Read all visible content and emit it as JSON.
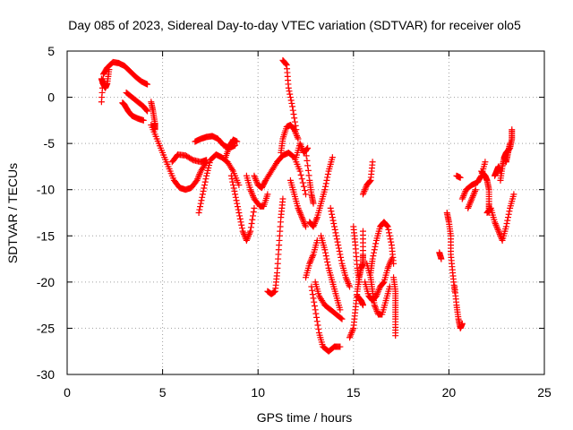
{
  "chart_data": {
    "type": "scatter",
    "title": "Day 085 of 2023, Sidereal Day-to-day VTEC variation (SDTVAR) for receiver olo5",
    "xlabel": "GPS time / hours",
    "ylabel": "SDTVAR / TECUs",
    "xlim": [
      0,
      25
    ],
    "ylim": [
      -30,
      5
    ],
    "xticks": [
      0,
      5,
      10,
      15,
      20,
      25
    ],
    "yticks": [
      5,
      0,
      -5,
      -10,
      -15,
      -20,
      -25,
      -30
    ],
    "grid": true,
    "marker": "+",
    "series": [
      {
        "name": "SDTVAR",
        "color": "#ff0000",
        "segments": [
          [
            [
              1.8,
              -0.5
            ],
            [
              1.9,
              2.5
            ],
            [
              2.1,
              3.2
            ],
            [
              2.4,
              3.8
            ],
            [
              2.7,
              3.7
            ],
            [
              3.0,
              3.4
            ],
            [
              3.3,
              2.8
            ],
            [
              3.6,
              2.2
            ],
            [
              3.9,
              1.7
            ],
            [
              4.2,
              1.4
            ]
          ],
          [
            [
              1.8,
              2.0
            ],
            [
              1.9,
              1.4
            ],
            [
              2.0,
              1.0
            ],
            [
              2.1,
              1.5
            ],
            [
              2.2,
              3.0
            ]
          ],
          [
            [
              2.9,
              -0.6
            ],
            [
              3.0,
              -0.8
            ],
            [
              3.2,
              -1.5
            ],
            [
              3.4,
              -2.0
            ],
            [
              3.7,
              -2.3
            ],
            [
              4.0,
              -2.5
            ]
          ],
          [
            [
              3.1,
              0.5
            ],
            [
              3.4,
              0.0
            ],
            [
              3.7,
              -0.5
            ],
            [
              4.0,
              -1.0
            ],
            [
              4.2,
              -1.5
            ]
          ],
          [
            [
              4.4,
              -0.5
            ],
            [
              4.5,
              -1.5
            ],
            [
              4.6,
              -2.8
            ],
            [
              4.6,
              -3.5
            ]
          ],
          [
            [
              4.4,
              -3.0
            ],
            [
              4.7,
              -4.5
            ],
            [
              5.0,
              -6.0
            ],
            [
              5.3,
              -7.5
            ],
            [
              5.6,
              -9.0
            ],
            [
              5.9,
              -9.8
            ],
            [
              6.2,
              -10.0
            ],
            [
              6.5,
              -9.8
            ],
            [
              6.8,
              -9.0
            ],
            [
              7.0,
              -8.0
            ],
            [
              7.3,
              -7.0
            ]
          ],
          [
            [
              5.5,
              -7.0
            ],
            [
              5.8,
              -6.2
            ],
            [
              6.2,
              -6.3
            ],
            [
              6.6,
              -6.8
            ],
            [
              7.0,
              -7.0
            ],
            [
              7.3,
              -6.8
            ]
          ],
          [
            [
              6.9,
              -12.5
            ],
            [
              7.1,
              -10.5
            ],
            [
              7.3,
              -8.5
            ],
            [
              7.5,
              -6.8
            ],
            [
              7.8,
              -6.2
            ],
            [
              8.1,
              -6.5
            ],
            [
              8.4,
              -7.0
            ],
            [
              8.7,
              -8.0
            ],
            [
              9.0,
              -9.5
            ]
          ],
          [
            [
              6.7,
              -4.8
            ],
            [
              7.0,
              -4.5
            ],
            [
              7.3,
              -4.3
            ],
            [
              7.6,
              -4.2
            ],
            [
              7.9,
              -4.5
            ],
            [
              8.2,
              -5.2
            ],
            [
              8.5,
              -5.5
            ],
            [
              8.8,
              -5.2
            ]
          ],
          [
            [
              8.3,
              -6.5
            ],
            [
              8.5,
              -5.3
            ],
            [
              8.7,
              -4.6
            ],
            [
              8.9,
              -4.8
            ]
          ],
          [
            [
              8.6,
              -8.5
            ],
            [
              8.8,
              -10.5
            ],
            [
              9.0,
              -12.5
            ],
            [
              9.2,
              -14.5
            ],
            [
              9.4,
              -15.5
            ],
            [
              9.6,
              -14.5
            ],
            [
              9.8,
              -12.0
            ]
          ],
          [
            [
              9.4,
              -8.5
            ],
            [
              9.6,
              -10.0
            ],
            [
              9.8,
              -11.0
            ],
            [
              10.1,
              -11.8
            ],
            [
              10.3,
              -11.8
            ],
            [
              10.5,
              -10.5
            ]
          ],
          [
            [
              9.8,
              -8.5
            ],
            [
              10.0,
              -9.5
            ],
            [
              10.2,
              -9.8
            ],
            [
              10.4,
              -9.0
            ],
            [
              10.7,
              -8.0
            ],
            [
              11.0,
              -7.0
            ],
            [
              11.3,
              -6.3
            ],
            [
              11.6,
              -6.0
            ],
            [
              11.9,
              -6.5
            ],
            [
              12.2,
              -8.0
            ],
            [
              12.5,
              -10.5
            ]
          ],
          [
            [
              10.5,
              -21.0
            ],
            [
              10.7,
              -21.3
            ],
            [
              10.9,
              -21.0
            ],
            [
              11.0,
              -19.0
            ],
            [
              11.1,
              -16.0
            ],
            [
              11.2,
              -13.0
            ],
            [
              11.3,
              -11.0
            ]
          ],
          [
            [
              11.2,
              -6.0
            ],
            [
              11.3,
              -4.5
            ],
            [
              11.5,
              -3.2
            ],
            [
              11.7,
              -3.0
            ],
            [
              11.9,
              -3.5
            ],
            [
              12.1,
              -4.5
            ]
          ],
          [
            [
              11.3,
              4.0
            ],
            [
              11.5,
              3.5
            ],
            [
              11.6,
              1.0
            ],
            [
              11.8,
              -1.0
            ],
            [
              12.0,
              -3.5
            ]
          ],
          [
            [
              11.7,
              -9.0
            ],
            [
              11.9,
              -10.5
            ],
            [
              12.1,
              -12.0
            ],
            [
              12.3,
              -13.0
            ],
            [
              12.5,
              -14.0
            ]
          ],
          [
            [
              12.0,
              -6.5
            ],
            [
              12.2,
              -5.0
            ],
            [
              12.4,
              -6.0
            ],
            [
              12.6,
              -5.5
            ]
          ],
          [
            [
              12.5,
              -19.5
            ],
            [
              12.7,
              -18.0
            ],
            [
              12.9,
              -17.0
            ],
            [
              13.1,
              -15.5
            ]
          ],
          [
            [
              12.5,
              -5.8
            ],
            [
              12.7,
              -9.0
            ],
            [
              12.8,
              -10.5
            ],
            [
              12.9,
              -11.5
            ]
          ],
          [
            [
              12.7,
              -13.5
            ],
            [
              12.9,
              -14.0
            ],
            [
              13.1,
              -13.0
            ],
            [
              13.3,
              -11.5
            ],
            [
              13.5,
              -10.0
            ],
            [
              13.7,
              -8.0
            ],
            [
              13.9,
              -6.5
            ]
          ],
          [
            [
              12.8,
              -20.5
            ],
            [
              13.0,
              -23.0
            ],
            [
              13.2,
              -25.5
            ],
            [
              13.4,
              -27.0
            ],
            [
              13.7,
              -27.5
            ],
            [
              14.0,
              -27.0
            ],
            [
              14.3,
              -27.0
            ]
          ],
          [
            [
              13.0,
              -20.0
            ],
            [
              13.2,
              -21.5
            ],
            [
              13.5,
              -22.5
            ],
            [
              13.8,
              -23.0
            ],
            [
              14.1,
              -23.5
            ],
            [
              14.4,
              -24.0
            ]
          ],
          [
            [
              13.3,
              -15.0
            ],
            [
              13.5,
              -16.5
            ],
            [
              13.7,
              -18.5
            ],
            [
              13.9,
              -20.0
            ],
            [
              14.1,
              -21.5
            ],
            [
              14.3,
              -23.0
            ]
          ],
          [
            [
              13.8,
              -12.0
            ],
            [
              14.0,
              -14.0
            ],
            [
              14.2,
              -16.0
            ],
            [
              14.4,
              -18.0
            ],
            [
              14.6,
              -19.5
            ],
            [
              14.8,
              -20.5
            ]
          ],
          [
            [
              14.8,
              -26.0
            ],
            [
              15.0,
              -25.0
            ],
            [
              15.1,
              -23.0
            ],
            [
              15.2,
              -21.0
            ],
            [
              15.3,
              -19.5
            ],
            [
              15.4,
              -18.5
            ],
            [
              15.5,
              -18.0
            ],
            [
              15.5,
              -17.0
            ],
            [
              15.5,
              -14.5
            ]
          ],
          [
            [
              15.0,
              -14.0
            ],
            [
              15.1,
              -16.0
            ],
            [
              15.2,
              -18.5
            ],
            [
              15.3,
              -20.0
            ]
          ],
          [
            [
              15.2,
              -21.5
            ],
            [
              15.4,
              -22.0
            ],
            [
              15.5,
              -22.5
            ]
          ],
          [
            [
              15.5,
              -10.5
            ],
            [
              15.7,
              -9.5
            ],
            [
              15.9,
              -9.0
            ],
            [
              16.0,
              -7.0
            ]
          ],
          [
            [
              15.6,
              -20.0
            ],
            [
              15.8,
              -21.5
            ],
            [
              16.0,
              -22.0
            ],
            [
              16.2,
              -21.5
            ],
            [
              16.4,
              -20.5
            ],
            [
              16.6,
              -20.0
            ],
            [
              16.8,
              -18.5
            ],
            [
              17.0,
              -17.5
            ]
          ],
          [
            [
              15.7,
              -18.0
            ],
            [
              15.9,
              -19.5
            ],
            [
              16.0,
              -21.0
            ],
            [
              16.1,
              -22.5
            ],
            [
              16.3,
              -23.5
            ],
            [
              16.5,
              -23.5
            ],
            [
              16.7,
              -22.0
            ],
            [
              16.9,
              -20.5
            ]
          ],
          [
            [
              15.9,
              -19.0
            ],
            [
              16.0,
              -17.5
            ],
            [
              16.2,
              -15.5
            ],
            [
              16.4,
              -14.0
            ],
            [
              16.6,
              -13.5
            ],
            [
              16.8,
              -14.0
            ],
            [
              17.0,
              -16.0
            ],
            [
              17.1,
              -18.0
            ]
          ],
          [
            [
              17.1,
              -19.5
            ],
            [
              17.2,
              -21.0
            ],
            [
              17.2,
              -22.5
            ],
            [
              17.2,
              -24.0
            ],
            [
              17.2,
              -25.8
            ]
          ],
          [
            [
              19.5,
              -16.8
            ],
            [
              19.6,
              -17.5
            ]
          ],
          [
            [
              19.9,
              -12.5
            ],
            [
              20.0,
              -13.5
            ],
            [
              20.1,
              -15.0
            ],
            [
              20.1,
              -17.0
            ],
            [
              20.2,
              -19.0
            ],
            [
              20.3,
              -21.0
            ]
          ],
          [
            [
              20.3,
              -20.5
            ],
            [
              20.4,
              -22.5
            ],
            [
              20.5,
              -24.0
            ],
            [
              20.6,
              -25.0
            ],
            [
              20.7,
              -24.5
            ]
          ],
          [
            [
              20.4,
              -8.5
            ],
            [
              20.6,
              -8.7
            ]
          ],
          [
            [
              20.7,
              -11.0
            ],
            [
              20.9,
              -10.0
            ],
            [
              21.2,
              -9.5
            ],
            [
              21.5,
              -9.2
            ],
            [
              21.7,
              -8.5
            ],
            [
              21.9,
              -7.0
            ]
          ],
          [
            [
              21.0,
              -12.0
            ],
            [
              21.2,
              -11.0
            ],
            [
              21.4,
              -10.0
            ]
          ],
          [
            [
              21.7,
              -8.0
            ],
            [
              21.9,
              -8.5
            ],
            [
              22.0,
              -9.0
            ],
            [
              22.1,
              -10.0
            ],
            [
              22.1,
              -11.5
            ],
            [
              22.1,
              -12.5
            ]
          ],
          [
            [
              22.0,
              -12.5
            ],
            [
              22.2,
              -12.0
            ],
            [
              22.4,
              -13.5
            ],
            [
              22.6,
              -14.5
            ],
            [
              22.8,
              -15.5
            ],
            [
              23.0,
              -14.0
            ],
            [
              23.2,
              -12.0
            ],
            [
              23.4,
              -10.5
            ]
          ],
          [
            [
              22.4,
              -8.5
            ],
            [
              22.5,
              -8.0
            ],
            [
              22.6,
              -7.5
            ],
            [
              22.7,
              -8.0
            ]
          ],
          [
            [
              22.7,
              -9.0
            ],
            [
              22.8,
              -7.5
            ],
            [
              22.9,
              -6.5
            ],
            [
              23.0,
              -6.0
            ],
            [
              23.2,
              -5.5
            ],
            [
              23.3,
              -4.5
            ],
            [
              23.3,
              -3.5
            ]
          ],
          [
            [
              22.9,
              -6.5
            ],
            [
              23.0,
              -7.0
            ],
            [
              23.1,
              -6.0
            ],
            [
              23.2,
              -5.0
            ]
          ]
        ]
      }
    ]
  }
}
